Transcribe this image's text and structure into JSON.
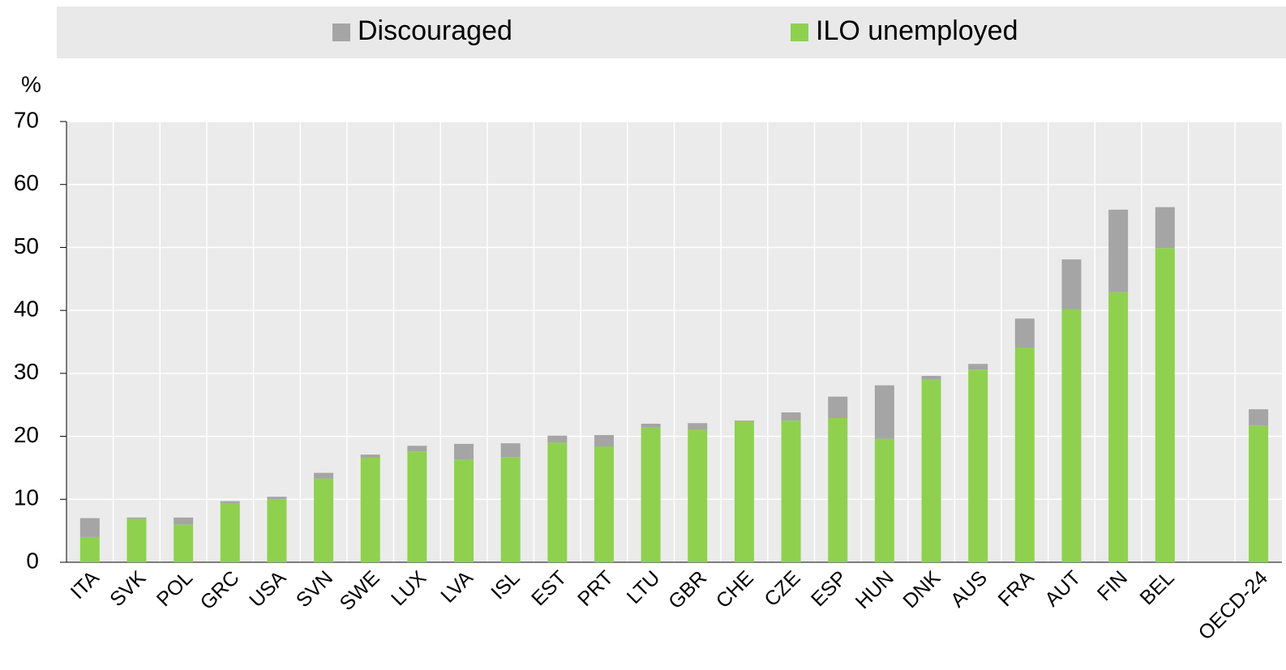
{
  "chart_data": {
    "type": "stacked_bar",
    "categories": [
      "ITA",
      "SVK",
      "POL",
      "GRC",
      "USA",
      "SVN",
      "SWE",
      "LUX",
      "LVA",
      "ISL",
      "EST",
      "PRT",
      "LTU",
      "GBR",
      "CHE",
      "CZE",
      "ESP",
      "HUN",
      "DNK",
      "AUS",
      "FRA",
      "AUT",
      "FIN",
      "BEL",
      null,
      "OECD-24"
    ],
    "series": [
      {
        "name": "ILO unemployed",
        "color": "#8fd14f",
        "values": [
          4.0,
          6.9,
          6.0,
          9.4,
          10.0,
          13.3,
          16.6,
          17.6,
          16.3,
          16.7,
          19.0,
          18.4,
          21.4,
          21.0,
          22.3,
          22.5,
          22.9,
          19.6,
          29.0,
          30.6,
          34.1,
          40.2,
          42.9,
          49.9,
          null,
          21.7
        ]
      },
      {
        "name": "Discouraged",
        "color": "#a5a5a5",
        "values": [
          3.0,
          0.2,
          1.1,
          0.3,
          0.4,
          0.9,
          0.5,
          0.9,
          2.5,
          2.2,
          1.1,
          1.8,
          0.6,
          1.1,
          0.2,
          1.3,
          3.4,
          8.5,
          0.6,
          0.9,
          4.6,
          7.9,
          13.1,
          6.5,
          null,
          2.6
        ]
      }
    ],
    "y_label": "%",
    "ylim": [
      0,
      70
    ],
    "yticks": [
      0,
      10,
      20,
      30,
      40,
      50,
      60,
      70
    ],
    "grid": true
  }
}
